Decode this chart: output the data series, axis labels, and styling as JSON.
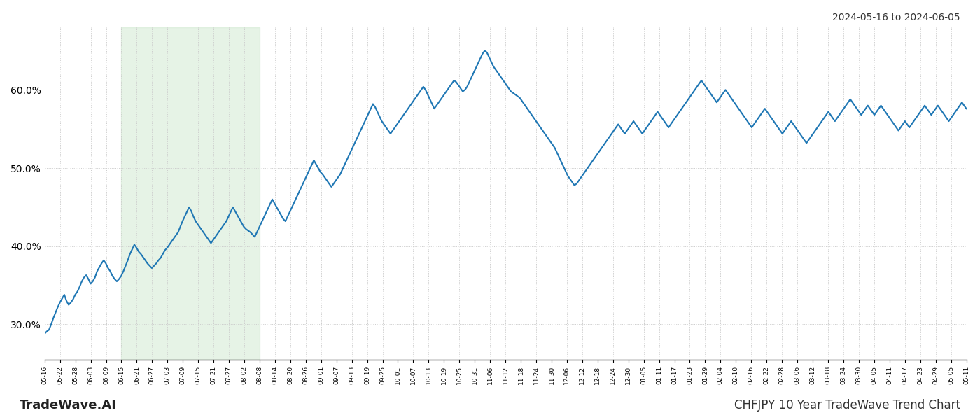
{
  "title_top_right": "2024-05-16 to 2024-06-05",
  "title_bottom_left": "TradeWave.AI",
  "title_bottom_right": "CHFJPY 10 Year TradeWave Trend Chart",
  "line_color": "#1f77b4",
  "line_width": 1.5,
  "highlight_color": "#c8e6c9",
  "highlight_alpha": 0.45,
  "background_color": "#ffffff",
  "grid_color": "#cccccc",
  "grid_style": "dotted",
  "yticks": [
    0.3,
    0.4,
    0.5,
    0.6
  ],
  "ytick_labels": [
    "30.0%",
    "40.0%",
    "50.0%",
    "60.0%"
  ],
  "ylim": [
    0.255,
    0.68
  ],
  "highlight_xstart": 5,
  "highlight_xend": 14,
  "xtick_labels": [
    "05-16",
    "05-22",
    "05-28",
    "06-03",
    "06-09",
    "06-15",
    "06-21",
    "06-27",
    "07-03",
    "07-09",
    "07-15",
    "07-21",
    "07-27",
    "08-02",
    "08-08",
    "08-14",
    "08-20",
    "08-26",
    "09-01",
    "09-07",
    "09-13",
    "09-19",
    "09-25",
    "10-01",
    "10-07",
    "10-13",
    "10-19",
    "10-25",
    "10-31",
    "11-06",
    "11-12",
    "11-18",
    "11-24",
    "11-30",
    "12-06",
    "12-12",
    "12-18",
    "12-24",
    "12-30",
    "01-05",
    "01-11",
    "01-17",
    "01-23",
    "01-29",
    "02-04",
    "02-10",
    "02-16",
    "02-22",
    "02-28",
    "03-06",
    "03-12",
    "03-18",
    "03-24",
    "03-30",
    "04-05",
    "04-11",
    "04-17",
    "04-23",
    "04-29",
    "05-05",
    "05-11"
  ],
  "y_values": [
    0.288,
    0.291,
    0.293,
    0.3,
    0.308,
    0.315,
    0.322,
    0.328,
    0.333,
    0.338,
    0.33,
    0.325,
    0.328,
    0.332,
    0.338,
    0.342,
    0.348,
    0.355,
    0.36,
    0.363,
    0.358,
    0.352,
    0.355,
    0.36,
    0.368,
    0.373,
    0.378,
    0.382,
    0.378,
    0.372,
    0.368,
    0.362,
    0.358,
    0.355,
    0.358,
    0.362,
    0.368,
    0.375,
    0.382,
    0.39,
    0.396,
    0.402,
    0.398,
    0.393,
    0.39,
    0.386,
    0.382,
    0.378,
    0.375,
    0.372,
    0.375,
    0.378,
    0.382,
    0.385,
    0.39,
    0.395,
    0.398,
    0.402,
    0.406,
    0.41,
    0.414,
    0.418,
    0.425,
    0.432,
    0.438,
    0.444,
    0.45,
    0.445,
    0.438,
    0.432,
    0.428,
    0.424,
    0.42,
    0.416,
    0.412,
    0.408,
    0.404,
    0.408,
    0.412,
    0.416,
    0.42,
    0.424,
    0.428,
    0.432,
    0.438,
    0.444,
    0.45,
    0.445,
    0.44,
    0.435,
    0.43,
    0.425,
    0.422,
    0.42,
    0.418,
    0.415,
    0.412,
    0.418,
    0.424,
    0.43,
    0.436,
    0.442,
    0.448,
    0.454,
    0.46,
    0.455,
    0.45,
    0.445,
    0.44,
    0.435,
    0.432,
    0.438,
    0.444,
    0.45,
    0.456,
    0.462,
    0.468,
    0.474,
    0.48,
    0.486,
    0.492,
    0.498,
    0.504,
    0.51,
    0.505,
    0.5,
    0.495,
    0.492,
    0.488,
    0.484,
    0.48,
    0.476,
    0.48,
    0.484,
    0.488,
    0.492,
    0.498,
    0.504,
    0.51,
    0.516,
    0.522,
    0.528,
    0.534,
    0.54,
    0.546,
    0.552,
    0.558,
    0.564,
    0.57,
    0.576,
    0.582,
    0.578,
    0.572,
    0.566,
    0.56,
    0.556,
    0.552,
    0.548,
    0.544,
    0.548,
    0.552,
    0.556,
    0.56,
    0.564,
    0.568,
    0.572,
    0.576,
    0.58,
    0.584,
    0.588,
    0.592,
    0.596,
    0.6,
    0.604,
    0.6,
    0.594,
    0.588,
    0.582,
    0.576,
    0.58,
    0.584,
    0.588,
    0.592,
    0.596,
    0.6,
    0.604,
    0.608,
    0.612,
    0.61,
    0.606,
    0.602,
    0.598,
    0.6,
    0.604,
    0.61,
    0.616,
    0.622,
    0.628,
    0.634,
    0.64,
    0.646,
    0.65,
    0.648,
    0.642,
    0.636,
    0.63,
    0.626,
    0.622,
    0.618,
    0.614,
    0.61,
    0.606,
    0.602,
    0.598,
    0.596,
    0.594,
    0.592,
    0.59,
    0.586,
    0.582,
    0.578,
    0.574,
    0.57,
    0.566,
    0.562,
    0.558,
    0.554,
    0.55,
    0.546,
    0.542,
    0.538,
    0.534,
    0.53,
    0.526,
    0.52,
    0.514,
    0.508,
    0.502,
    0.496,
    0.49,
    0.486,
    0.482,
    0.478,
    0.48,
    0.484,
    0.488,
    0.492,
    0.496,
    0.5,
    0.504,
    0.508,
    0.512,
    0.516,
    0.52,
    0.524,
    0.528,
    0.532,
    0.536,
    0.54,
    0.544,
    0.548,
    0.552,
    0.556,
    0.552,
    0.548,
    0.544,
    0.548,
    0.552,
    0.556,
    0.56,
    0.556,
    0.552,
    0.548,
    0.544,
    0.548,
    0.552,
    0.556,
    0.56,
    0.564,
    0.568,
    0.572,
    0.568,
    0.564,
    0.56,
    0.556,
    0.552,
    0.556,
    0.56,
    0.564,
    0.568,
    0.572,
    0.576,
    0.58,
    0.584,
    0.588,
    0.592,
    0.596,
    0.6,
    0.604,
    0.608,
    0.612,
    0.608,
    0.604,
    0.6,
    0.596,
    0.592,
    0.588,
    0.584,
    0.588,
    0.592,
    0.596,
    0.6,
    0.596,
    0.592,
    0.588,
    0.584,
    0.58,
    0.576,
    0.572,
    0.568,
    0.564,
    0.56,
    0.556,
    0.552,
    0.556,
    0.56,
    0.564,
    0.568,
    0.572,
    0.576,
    0.572,
    0.568,
    0.564,
    0.56,
    0.556,
    0.552,
    0.548,
    0.544,
    0.548,
    0.552,
    0.556,
    0.56,
    0.556,
    0.552,
    0.548,
    0.544,
    0.54,
    0.536,
    0.532,
    0.536,
    0.54,
    0.544,
    0.548,
    0.552,
    0.556,
    0.56,
    0.564,
    0.568,
    0.572,
    0.568,
    0.564,
    0.56,
    0.564,
    0.568,
    0.572,
    0.576,
    0.58,
    0.584,
    0.588,
    0.584,
    0.58,
    0.576,
    0.572,
    0.568,
    0.572,
    0.576,
    0.58,
    0.576,
    0.572,
    0.568,
    0.572,
    0.576,
    0.58,
    0.576,
    0.572,
    0.568,
    0.564,
    0.56,
    0.556,
    0.552,
    0.548,
    0.552,
    0.556,
    0.56,
    0.556,
    0.552,
    0.556,
    0.56,
    0.564,
    0.568,
    0.572,
    0.576,
    0.58,
    0.576,
    0.572,
    0.568,
    0.572,
    0.576,
    0.58,
    0.576,
    0.572,
    0.568,
    0.564,
    0.56,
    0.564,
    0.568,
    0.572,
    0.576,
    0.58,
    0.584,
    0.58,
    0.576
  ]
}
